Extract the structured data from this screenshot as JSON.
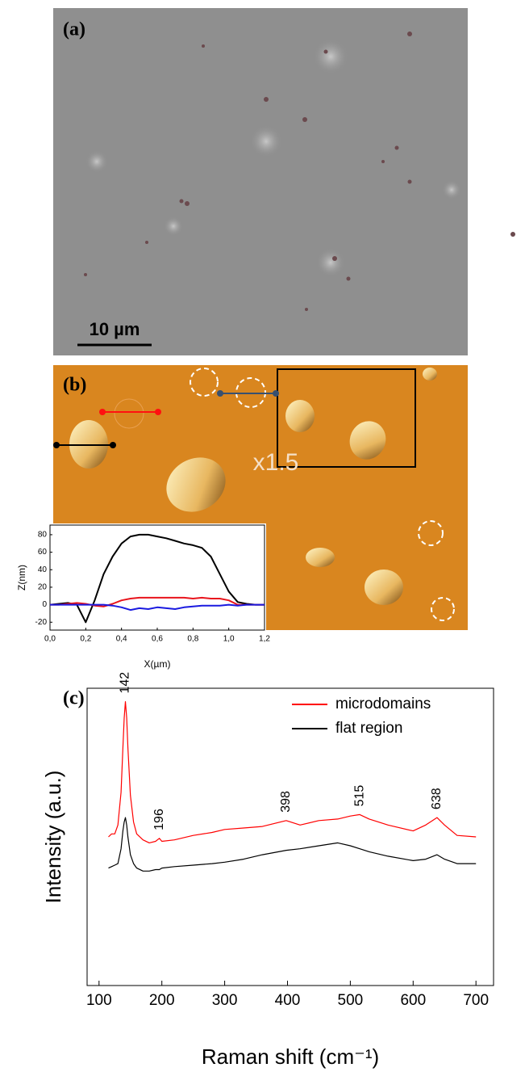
{
  "panel_a": {
    "label": "(a)",
    "scale_bar": "10 µm"
  },
  "panel_b": {
    "label": "(b)",
    "zoom": "x1.5"
  },
  "panel_c": {
    "label": "(c)"
  },
  "chart_data": [
    {
      "type": "line",
      "xlabel": "X(µm)",
      "ylabel": "Z(nm)",
      "x": [
        0,
        0.05,
        0.1,
        0.15,
        0.2,
        0.25,
        0.3,
        0.35,
        0.4,
        0.45,
        0.5,
        0.55,
        0.6,
        0.65,
        0.7,
        0.75,
        0.8,
        0.85,
        0.9,
        0.95,
        1.0,
        1.05,
        1.1,
        1.15,
        1.2
      ],
      "series": [
        {
          "color": "#000000",
          "values": [
            0,
            1,
            2,
            0,
            -20,
            5,
            35,
            55,
            70,
            78,
            80,
            80,
            78,
            76,
            73,
            70,
            68,
            65,
            55,
            35,
            15,
            3,
            1,
            0,
            0
          ]
        },
        {
          "color": "#e8141c",
          "values": [
            0,
            0,
            1,
            2,
            1,
            -1,
            -2,
            1,
            5,
            7,
            8,
            8,
            8,
            8,
            8,
            8,
            7,
            8,
            7,
            7,
            5,
            0,
            0,
            0,
            0
          ]
        },
        {
          "color": "#1a1ae0",
          "values": [
            0,
            0,
            0,
            0,
            0,
            0,
            0,
            -1,
            -3,
            -6,
            -4,
            -5,
            -3,
            -4,
            -5,
            -3,
            -2,
            -1,
            -1,
            -1,
            0,
            -1,
            0,
            0,
            0
          ]
        }
      ],
      "xlim": [
        0,
        1.2
      ],
      "xticks": [
        {
          "value": 0,
          "label": "0,0"
        },
        {
          "value": 0.2,
          "label": "0,2"
        },
        {
          "value": 0.4,
          "label": "0,4"
        },
        {
          "value": 0.6,
          "label": "0,6"
        },
        {
          "value": 0.8,
          "label": "0,8"
        },
        {
          "value": 1.0,
          "label": "1,0"
        },
        {
          "value": 1.2,
          "label": "1,2"
        }
      ],
      "ylim": [
        -29,
        91
      ],
      "yticks": [
        -20,
        0,
        20,
        40,
        60,
        80
      ]
    },
    {
      "type": "line",
      "xlabel": "Raman shift (cm⁻¹)",
      "ylabel": "Intensity (a.u.)",
      "x": [
        115,
        120,
        125,
        130,
        135,
        138,
        140,
        142,
        144,
        146,
        150,
        155,
        160,
        170,
        180,
        190,
        196,
        200,
        220,
        250,
        280,
        300,
        330,
        360,
        398,
        420,
        450,
        480,
        500,
        515,
        530,
        560,
        600,
        620,
        638,
        650,
        670,
        700
      ],
      "series": [
        {
          "name": "microdomains",
          "color": "#ff0000",
          "values": [
            50,
            51,
            51,
            54,
            65,
            80,
            90,
            95.5,
            90,
            80,
            64,
            55,
            51,
            49,
            48,
            48.5,
            49.5,
            48.5,
            49,
            50.5,
            51.5,
            52.5,
            53,
            53.5,
            55.5,
            54,
            55.5,
            56,
            57,
            57.5,
            56,
            54,
            52,
            54,
            56.5,
            54,
            50.5,
            50
          ]
        },
        {
          "name": "flat region",
          "color": "#000000",
          "values": [
            39.5,
            40,
            40.5,
            41,
            46,
            52,
            55,
            56.5,
            54,
            50,
            44,
            41,
            39.5,
            38.5,
            38.5,
            39,
            39,
            39.5,
            40,
            40.5,
            41,
            41.5,
            42.5,
            44,
            45.5,
            46,
            47,
            48,
            47,
            46,
            45,
            43.5,
            42,
            42.5,
            44,
            42.5,
            41,
            41
          ]
        }
      ],
      "annotations": [
        142,
        196,
        398,
        515,
        638
      ],
      "xlim": [
        81,
        728
      ],
      "xticks": [
        100,
        200,
        300,
        400,
        500,
        600,
        700
      ],
      "ylim": [
        0,
        100
      ],
      "legend": "upper right"
    }
  ]
}
